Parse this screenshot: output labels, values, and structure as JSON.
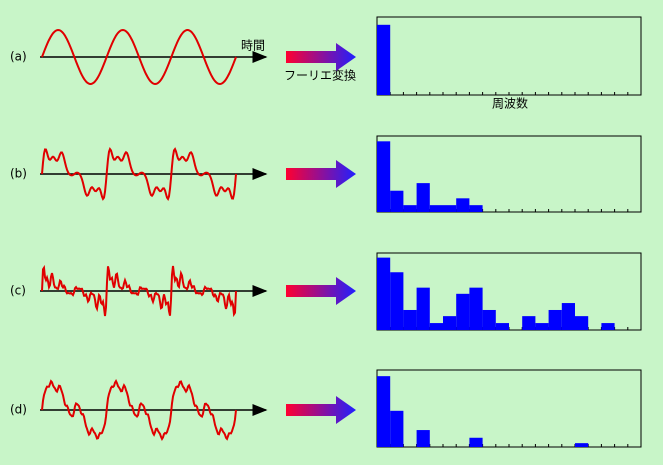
{
  "chart_data": [
    {
      "type": "bar",
      "label": "(a)",
      "color": "#0000ff",
      "values": [
        90,
        0,
        0,
        0,
        0,
        0,
        0,
        0,
        0,
        0,
        0,
        0,
        0,
        0,
        0,
        0,
        0,
        0,
        0,
        0
      ]
    },
    {
      "type": "bar",
      "label": "(b)",
      "color": "#0000ff",
      "values": [
        93,
        28,
        9,
        38,
        9,
        9,
        18,
        9,
        0,
        0,
        0,
        0,
        0,
        0,
        0,
        0,
        0,
        0,
        0,
        0
      ]
    },
    {
      "type": "bar",
      "label": "(c)",
      "color": "#0000ff",
      "values": [
        94,
        75,
        26,
        55,
        9,
        18,
        47,
        55,
        26,
        9,
        0,
        18,
        9,
        26,
        35,
        18,
        0,
        9,
        0,
        0
      ]
    },
    {
      "type": "bar",
      "label": "(d)",
      "color": "#0000ff",
      "values": [
        92,
        47,
        0,
        22,
        0,
        0,
        0,
        12,
        0,
        0,
        0,
        0,
        0,
        0,
        0,
        5,
        0,
        0,
        0,
        0
      ]
    }
  ],
  "time_label": "時間",
  "transform_label": "フーリエ変換",
  "frequency_label": "周波数"
}
